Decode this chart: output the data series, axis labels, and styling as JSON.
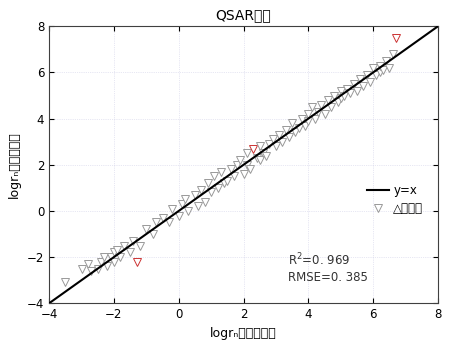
{
  "title": "QSAR模型",
  "xlabel": "logrₙ（实测值）",
  "ylabel": "logrₙ（预测值）",
  "xlim": [
    -4,
    8
  ],
  "ylim": [
    -4,
    8
  ],
  "xticks": [
    -4,
    -2,
    0,
    2,
    4,
    6,
    8
  ],
  "yticks": [
    -4,
    -2,
    0,
    2,
    4,
    6,
    8
  ],
  "line_color": "#000000",
  "marker_color_face": "#ffffff",
  "marker_color_edge": "#999999",
  "marker_color_red_edge": "#cc3333",
  "marker_color_red_face": "#ffffff",
  "background_color": "#ffffff",
  "grid_color": "#d0d0e8",
  "legend_line_label": "y=x",
  "legend_tri_label": "△验证集",
  "r2_text": "R$^2$=0. 969",
  "rmse_text": "RMSE=0. 385",
  "scatter_data": [
    [
      -3.5,
      -3.1
    ],
    [
      -3.0,
      -2.5
    ],
    [
      -2.8,
      -2.3
    ],
    [
      -2.7,
      -2.6
    ],
    [
      -2.5,
      -2.5
    ],
    [
      -2.4,
      -2.2
    ],
    [
      -2.3,
      -2.0
    ],
    [
      -2.2,
      -2.4
    ],
    [
      -2.1,
      -2.0
    ],
    [
      -2.0,
      -2.2
    ],
    [
      -2.0,
      -1.8
    ],
    [
      -1.9,
      -1.7
    ],
    [
      -1.8,
      -2.0
    ],
    [
      -1.7,
      -1.5
    ],
    [
      -1.5,
      -1.8
    ],
    [
      -1.4,
      -1.3
    ],
    [
      -1.3,
      -2.2
    ],
    [
      -1.2,
      -1.5
    ],
    [
      -1.0,
      -0.8
    ],
    [
      -0.8,
      -1.0
    ],
    [
      -0.7,
      -0.5
    ],
    [
      -0.5,
      -0.3
    ],
    [
      -0.3,
      -0.5
    ],
    [
      -0.2,
      0.1
    ],
    [
      0.0,
      -0.2
    ],
    [
      0.1,
      0.3
    ],
    [
      0.2,
      0.5
    ],
    [
      0.3,
      0.0
    ],
    [
      0.5,
      0.7
    ],
    [
      0.6,
      0.2
    ],
    [
      0.7,
      0.9
    ],
    [
      0.8,
      0.4
    ],
    [
      0.9,
      1.2
    ],
    [
      1.0,
      0.8
    ],
    [
      1.1,
      1.5
    ],
    [
      1.2,
      1.0
    ],
    [
      1.3,
      1.7
    ],
    [
      1.4,
      1.2
    ],
    [
      1.5,
      1.3
    ],
    [
      1.6,
      1.8
    ],
    [
      1.7,
      1.5
    ],
    [
      1.8,
      2.0
    ],
    [
      1.9,
      2.2
    ],
    [
      2.0,
      1.6
    ],
    [
      2.1,
      2.5
    ],
    [
      2.1,
      2.0
    ],
    [
      2.2,
      1.8
    ],
    [
      2.3,
      2.7
    ],
    [
      2.4,
      2.3
    ],
    [
      2.5,
      2.2
    ],
    [
      2.5,
      2.8
    ],
    [
      2.6,
      2.5
    ],
    [
      2.7,
      2.4
    ],
    [
      2.8,
      2.9
    ],
    [
      2.9,
      3.1
    ],
    [
      3.0,
      2.8
    ],
    [
      3.1,
      3.3
    ],
    [
      3.2,
      3.0
    ],
    [
      3.3,
      3.5
    ],
    [
      3.4,
      3.2
    ],
    [
      3.5,
      3.8
    ],
    [
      3.6,
      3.4
    ],
    [
      3.7,
      3.6
    ],
    [
      3.8,
      4.0
    ],
    [
      3.9,
      3.7
    ],
    [
      4.0,
      4.2
    ],
    [
      4.0,
      3.9
    ],
    [
      4.1,
      4.5
    ],
    [
      4.2,
      4.0
    ],
    [
      4.3,
      4.3
    ],
    [
      4.4,
      4.6
    ],
    [
      4.5,
      4.2
    ],
    [
      4.6,
      4.8
    ],
    [
      4.7,
      4.5
    ],
    [
      4.8,
      5.0
    ],
    [
      4.9,
      4.7
    ],
    [
      5.0,
      5.2
    ],
    [
      5.0,
      4.9
    ],
    [
      5.1,
      5.0
    ],
    [
      5.2,
      5.3
    ],
    [
      5.3,
      5.1
    ],
    [
      5.4,
      5.5
    ],
    [
      5.5,
      5.2
    ],
    [
      5.6,
      5.7
    ],
    [
      5.7,
      5.4
    ],
    [
      5.8,
      5.9
    ],
    [
      5.9,
      5.6
    ],
    [
      6.0,
      6.2
    ],
    [
      6.1,
      5.9
    ],
    [
      6.2,
      6.0
    ],
    [
      6.2,
      6.3
    ],
    [
      6.3,
      6.1
    ],
    [
      6.4,
      6.5
    ],
    [
      6.5,
      6.2
    ],
    [
      6.6,
      6.8
    ],
    [
      6.7,
      7.5
    ]
  ],
  "red_points": [
    [
      -1.3,
      -2.2
    ],
    [
      2.3,
      2.7
    ],
    [
      6.7,
      7.5
    ]
  ]
}
